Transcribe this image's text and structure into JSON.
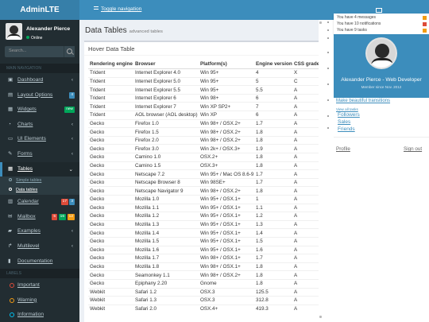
{
  "header": {
    "logo": "AdminLTE",
    "toggle_label": "Toggle navigation"
  },
  "sidebar": {
    "user_name": "Alexander Pierce",
    "user_status": "Online",
    "search_placeholder": "Search...",
    "nav_header": "MAIN NAVIGATION",
    "items": [
      {
        "label": "Dashboard",
        "icon": "dashboard-icon",
        "glyph": "▣",
        "chevron": "‹"
      },
      {
        "label": "Layout Options",
        "icon": "files-icon",
        "glyph": "▤",
        "badge": "4",
        "badge_color": "#3c8dbc"
      },
      {
        "label": "Widgets",
        "icon": "th-icon",
        "glyph": "▦",
        "badge": "new",
        "badge_color": "#00a65a"
      },
      {
        "label": "Charts",
        "icon": "pie-chart-icon",
        "glyph": "◔",
        "chevron": "‹"
      },
      {
        "label": "UI Elements",
        "icon": "laptop-icon",
        "glyph": "▭",
        "chevron": "‹"
      },
      {
        "label": "Forms",
        "icon": "edit-icon",
        "glyph": "✎",
        "chevron": "‹"
      },
      {
        "label": "Tables",
        "icon": "table-icon",
        "glyph": "▦",
        "chevron": "⌄"
      }
    ],
    "sub_items": [
      {
        "label": "Simple tables"
      },
      {
        "label": "Data tables"
      }
    ],
    "items2": [
      {
        "label": "Calendar",
        "icon": "calendar-icon",
        "glyph": "▥",
        "badges": [
          {
            "text": "17",
            "color": "#dd4b39"
          },
          {
            "text": "3",
            "color": "#3c8dbc"
          }
        ]
      },
      {
        "label": "Mailbox",
        "icon": "envelope-icon",
        "glyph": "✉",
        "badges": [
          {
            "text": "5",
            "color": "#dd4b39"
          },
          {
            "text": "16",
            "color": "#00a65a"
          },
          {
            "text": "12",
            "color": "#f39c12"
          }
        ]
      },
      {
        "label": "Examples",
        "icon": "folder-icon",
        "glyph": "▰",
        "chevron": "‹"
      },
      {
        "label": "Multilevel",
        "icon": "share-icon",
        "glyph": "↱",
        "chevron": "‹"
      },
      {
        "label": "Documentation",
        "icon": "book-icon",
        "glyph": "▮"
      }
    ],
    "labels_header": "LABELS",
    "labels": [
      {
        "label": "Important",
        "color": "#dd4b39"
      },
      {
        "label": "Warning",
        "color": "#f39c12"
      },
      {
        "label": "Information",
        "color": "#00c0ef"
      }
    ]
  },
  "content": {
    "title": "Data Tables",
    "subtitle": "advanced tables",
    "box_title": "Hover Data Table",
    "columns": [
      "Rendering engine",
      "Browser",
      "Platform(s)",
      "Engine version",
      "CSS grade"
    ],
    "rows": [
      [
        "Trident",
        "Internet Explorer 4.0",
        "Win 95+",
        "4",
        "X"
      ],
      [
        "Trident",
        "Internet Explorer 5.0",
        "Win 95+",
        "5",
        "C"
      ],
      [
        "Trident",
        "Internet Explorer 5.5",
        "Win 95+",
        "5.5",
        "A"
      ],
      [
        "Trident",
        "Internet Explorer 6",
        "Win 98+",
        "6",
        "A"
      ],
      [
        "Trident",
        "Internet Explorer 7",
        "Win XP SP2+",
        "7",
        "A"
      ],
      [
        "Trident",
        "AOL browser (AOL desktop)",
        "Win XP",
        "6",
        "A"
      ],
      [
        "Gecko",
        "Firefox 1.0",
        "Win 98+ / OSX.2+",
        "1.7",
        "A"
      ],
      [
        "Gecko",
        "Firefox 1.5",
        "Win 98+ / OSX.2+",
        "1.8",
        "A"
      ],
      [
        "Gecko",
        "Firefox 2.0",
        "Win 98+ / OSX.2+",
        "1.8",
        "A"
      ],
      [
        "Gecko",
        "Firefox 3.0",
        "Win 2k+ / OSX.3+",
        "1.9",
        "A"
      ],
      [
        "Gecko",
        "Camino 1.0",
        "OSX.2+",
        "1.8",
        "A"
      ],
      [
        "Gecko",
        "Camino 1.5",
        "OSX.3+",
        "1.8",
        "A"
      ],
      [
        "Gecko",
        "Netscape 7.2",
        "Win 95+ / Mac OS 8.6-9.2",
        "1.7",
        "A"
      ],
      [
        "Gecko",
        "Netscape Browser 8",
        "Win 98SE+",
        "1.7",
        "A"
      ],
      [
        "Gecko",
        "Netscape Navigator 9",
        "Win 98+ / OSX.2+",
        "1.8",
        "A"
      ],
      [
        "Gecko",
        "Mozilla 1.0",
        "Win 95+ / OSX.1+",
        "1",
        "A"
      ],
      [
        "Gecko",
        "Mozilla 1.1",
        "Win 95+ / OSX.1+",
        "1.1",
        "A"
      ],
      [
        "Gecko",
        "Mozilla 1.2",
        "Win 95+ / OSX.1+",
        "1.2",
        "A"
      ],
      [
        "Gecko",
        "Mozilla 1.3",
        "Win 95+ / OSX.1+",
        "1.3",
        "A"
      ],
      [
        "Gecko",
        "Mozilla 1.4",
        "Win 95+ / OSX.1+",
        "1.4",
        "A"
      ],
      [
        "Gecko",
        "Mozilla 1.5",
        "Win 95+ / OSX.1+",
        "1.5",
        "A"
      ],
      [
        "Gecko",
        "Mozilla 1.6",
        "Win 95+ / OSX.1+",
        "1.6",
        "A"
      ],
      [
        "Gecko",
        "Mozilla 1.7",
        "Win 98+ / OSX.1+",
        "1.7",
        "A"
      ],
      [
        "Gecko",
        "Mozilla 1.8",
        "Win 98+ / OSX.1+",
        "1.8",
        "A"
      ],
      [
        "Gecko",
        "Seamonkey 1.1",
        "Win 98+ / OSX.2+",
        "1.8",
        "A"
      ],
      [
        "Gecko",
        "Epiphany 2.20",
        "Gnome",
        "1.8",
        "A"
      ],
      [
        "Webkit",
        "Safari 1.2",
        "OSX.3",
        "125.5",
        "A"
      ],
      [
        "Webkit",
        "Safari 1.3",
        "OSX.3",
        "312.8",
        "A"
      ],
      [
        "Webkit",
        "Safari 2.0",
        "OSX.4+",
        "419.3",
        "A"
      ]
    ]
  },
  "right_panel": {
    "notifications": [
      {
        "text": "You have 4 messages",
        "color": "#f39c12"
      },
      {
        "text": "You have 10 notifications",
        "color": "#dd4b39"
      },
      {
        "text": "You have 9 tasks",
        "color": "#f39c12"
      }
    ],
    "profile_name": "Alexander Pierce - Web Developer",
    "member_since": "Member since Nov. 2012",
    "design_label": "Make beautiful transitions",
    "view_all": "View all tasks",
    "links": [
      "Followers",
      "Sales",
      "Friends"
    ],
    "profile_btn": "Profile",
    "signout_btn": "Sign out"
  }
}
